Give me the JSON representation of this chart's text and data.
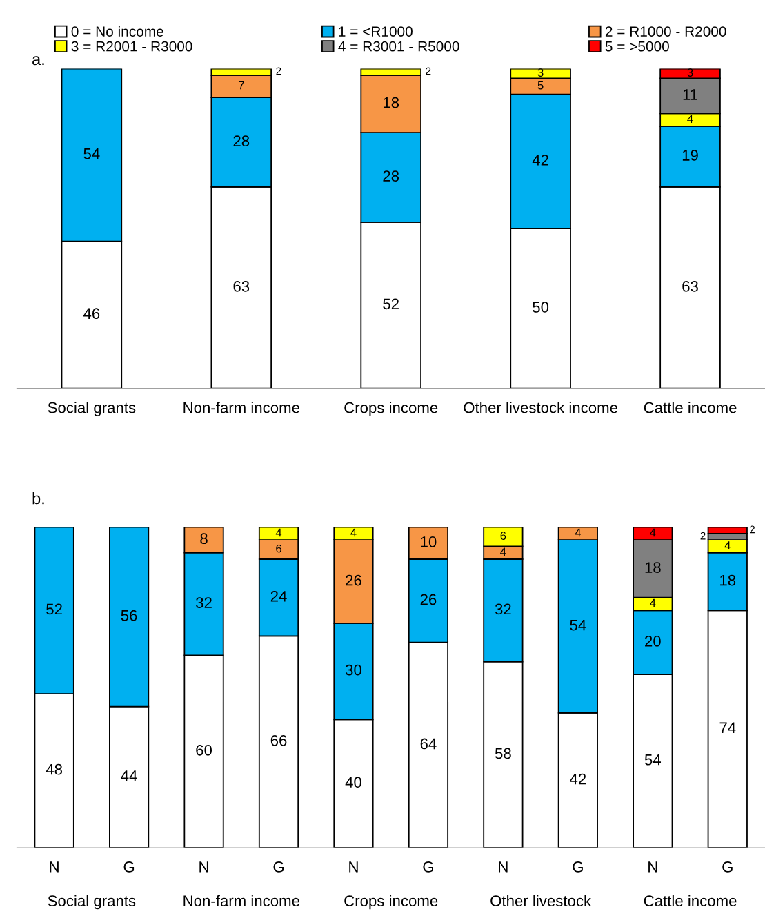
{
  "chart_data": [
    {
      "type": "bar",
      "title": "a.",
      "stacked": true,
      "data_labels": true,
      "legend": "top",
      "categories": [
        "Social grants",
        "Non-farm income",
        "Crops income",
        "Other livestock income",
        "Cattle income"
      ],
      "series": [
        {
          "name": "0 = No income",
          "color": "#ffffff",
          "values": [
            46,
            63,
            52,
            50,
            63
          ]
        },
        {
          "name": "1 = <R1000",
          "color": "#00b0f0",
          "values": [
            54,
            28,
            28,
            42,
            19
          ]
        },
        {
          "name": "2 = R1000 - R2000",
          "color": "#f79646",
          "values": [
            null,
            7,
            18,
            5,
            null
          ]
        },
        {
          "name": "3 = R2001 - R3000",
          "color": "#ffff00",
          "values": [
            null,
            2,
            2,
            3,
            4
          ]
        },
        {
          "name": "4 = R3001 - R5000",
          "color": "#808080",
          "values": [
            null,
            null,
            null,
            null,
            11
          ]
        },
        {
          "name": "5 = >5000",
          "color": "#ff0000",
          "values": [
            null,
            null,
            null,
            null,
            3
          ]
        }
      ]
    },
    {
      "type": "bar",
      "title": "b.",
      "stacked": true,
      "data_labels": true,
      "categories": [
        "N",
        "G",
        "N",
        "G",
        "N",
        "G",
        "N",
        "G",
        "N",
        "G"
      ],
      "annotations": [
        "Social grants",
        "Non-farm income",
        "Crops income",
        "Other livestock",
        "Cattle income"
      ],
      "series": [
        {
          "color": "#ffffff",
          "values": [
            48,
            44,
            60,
            66,
            40,
            64,
            58,
            42,
            54,
            74
          ]
        },
        {
          "color": "#00b0f0",
          "values": [
            52,
            56,
            32,
            24,
            30,
            26,
            32,
            54,
            20,
            18
          ]
        },
        {
          "color": "#f79646",
          "values": [
            null,
            null,
            8,
            6,
            26,
            10,
            4,
            4,
            null,
            null
          ]
        },
        {
          "color": "#ffff00",
          "values": [
            null,
            null,
            null,
            4,
            4,
            null,
            6,
            null,
            4,
            4
          ]
        },
        {
          "color": "#808080",
          "values": [
            null,
            null,
            null,
            null,
            null,
            null,
            null,
            null,
            18,
            2
          ]
        },
        {
          "color": "#ff0000",
          "values": [
            null,
            null,
            null,
            null,
            null,
            null,
            null,
            null,
            4,
            2
          ]
        }
      ]
    }
  ]
}
